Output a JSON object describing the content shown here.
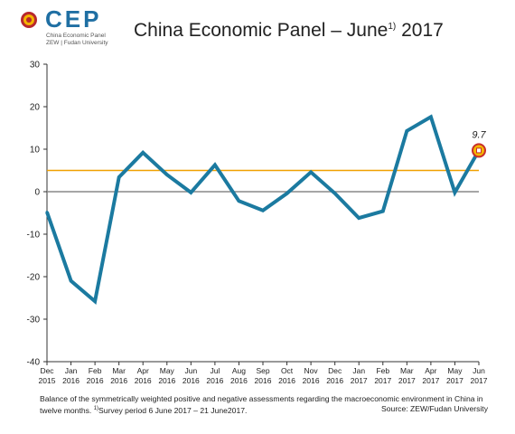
{
  "logo": {
    "word": "CEP",
    "line1": "China Economic Panel",
    "line2": "ZEW | Fudan University",
    "colors": {
      "ring": "#b8282d",
      "inner": "#f4b400",
      "text": "#1f6fa3"
    }
  },
  "title": {
    "main": "China Economic Panel – June",
    "superscript": "1)",
    "year": " 2017"
  },
  "caption": {
    "line1": "Balance of the symmetrically weighted positive and negative assessments regarding the macroeconomic environment in China in",
    "line2_a": "twelve months. ",
    "line2_sup": "1)",
    "line2_b": "Survey period 6 June 2017 – 21 June2017.",
    "source": "Source: ZEW/Fudan University"
  },
  "chart_data": {
    "type": "line",
    "categories": [
      [
        "Dec",
        "2015"
      ],
      [
        "Jan",
        "2016"
      ],
      [
        "Feb",
        "2016"
      ],
      [
        "Mar",
        "2016"
      ],
      [
        "Apr",
        "2016"
      ],
      [
        "May",
        "2016"
      ],
      [
        "Jun",
        "2016"
      ],
      [
        "Jul",
        "2016"
      ],
      [
        "Aug",
        "2016"
      ],
      [
        "Sep",
        "2016"
      ],
      [
        "Oct",
        "2016"
      ],
      [
        "Nov",
        "2016"
      ],
      [
        "Dec",
        "2016"
      ],
      [
        "Jan",
        "2017"
      ],
      [
        "Feb",
        "2017"
      ],
      [
        "Mar",
        "2017"
      ],
      [
        "Apr",
        "2017"
      ],
      [
        "May",
        "2017"
      ],
      [
        "Jun",
        "2017"
      ]
    ],
    "values": [
      -4.8,
      -21,
      -25.8,
      3.4,
      9.2,
      4.0,
      -0.2,
      6.3,
      -2.2,
      -4.4,
      -0.4,
      4.6,
      -0.4,
      -6.2,
      -4.6,
      14.3,
      17.6,
      -0.2,
      9.7
    ],
    "reference_line": 5,
    "zero_line": 0,
    "ylim": [
      -40,
      30
    ],
    "yticks": [
      30,
      20,
      10,
      0,
      -10,
      -20,
      -30,
      -40
    ],
    "highlight": {
      "index": 18,
      "label": "9.7"
    },
    "colors": {
      "series": "#1b7aa0",
      "reference": "#f0a000",
      "zero": "#888888",
      "marker_ring": "#c8302c",
      "marker_fill": "#f5b800"
    },
    "grid": false
  }
}
